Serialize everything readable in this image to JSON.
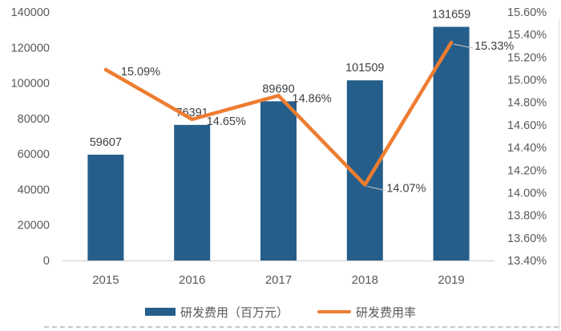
{
  "chart_data": {
    "type": "bar",
    "subtype": "bar+line combo, dual axis",
    "categories": [
      "2015",
      "2016",
      "2017",
      "2018",
      "2019"
    ],
    "series": [
      {
        "name": "研发费用（百万元）",
        "type": "bar",
        "axis": "left",
        "values": [
          59607,
          76391,
          89690,
          101509,
          131659
        ],
        "labels": [
          "59607",
          "76391",
          "89690",
          "101509",
          "131659"
        ]
      },
      {
        "name": "研发费用率",
        "type": "line",
        "axis": "right",
        "values": [
          15.09,
          14.65,
          14.86,
          14.07,
          15.33
        ],
        "labels": [
          "15.09%",
          "14.65%",
          "14.86%",
          "14.07%",
          "15.33%"
        ]
      }
    ],
    "title": "",
    "xlabel": "",
    "ylabel": "",
    "left_axis": {
      "min": 0,
      "max": 140000,
      "step": 20000,
      "ticks": [
        "0",
        "20000",
        "40000",
        "60000",
        "80000",
        "100000",
        "120000",
        "140000"
      ]
    },
    "right_axis": {
      "min": 13.4,
      "max": 15.6,
      "step": 0.2,
      "ticks": [
        "13.40%",
        "13.60%",
        "13.80%",
        "14.00%",
        "14.20%",
        "14.40%",
        "14.60%",
        "14.80%",
        "15.00%",
        "15.20%",
        "15.40%",
        "15.60%"
      ]
    },
    "grid": false,
    "legend_position": "bottom"
  },
  "legend": {
    "bar_label": "研发费用（百万元）",
    "line_label": "研发费用率"
  },
  "colors": {
    "bar": "#255E8B",
    "line": "#ED7D31",
    "axis_text": "#595959",
    "data_label": "#3F3F3F",
    "axis_line": "#D9D9D9",
    "leader": "#BFBFBF"
  }
}
